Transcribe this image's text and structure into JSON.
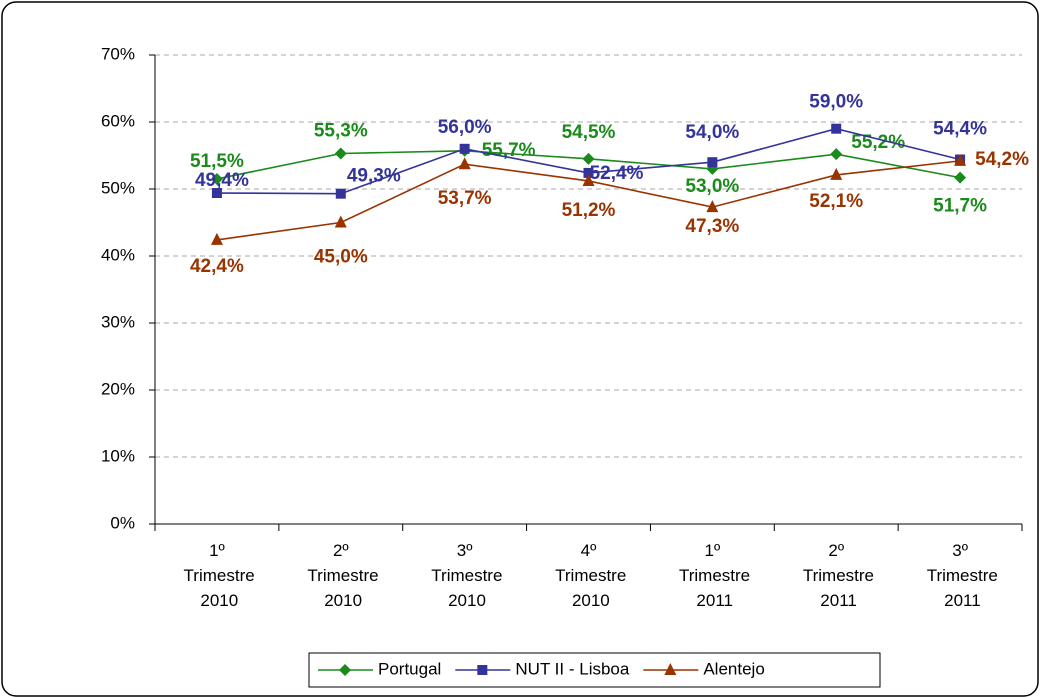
{
  "chart_data": {
    "type": "line",
    "categories": [
      "1º Trimestre 2010",
      "2º Trimestre 2010",
      "3º Trimestre 2010",
      "4º Trimestre 2010",
      "1º Trimestre 2011",
      "2º Trimestre 2011",
      "3º Trimestre 2011"
    ],
    "series": [
      {
        "name": "Portugal",
        "color": "#1a8a1a",
        "marker": "diamond",
        "values": [
          51.5,
          55.3,
          55.7,
          54.5,
          53.0,
          55.2,
          51.7
        ],
        "value_labels": [
          "51,5%",
          "55,3%",
          "55,7%",
          "54,5%",
          "53,0%",
          "55,2%",
          "51,7%"
        ]
      },
      {
        "name": "NUT II - Lisboa",
        "color": "#333399",
        "marker": "square",
        "values": [
          49.4,
          49.3,
          56.0,
          52.4,
          54.0,
          59.0,
          54.4
        ],
        "value_labels": [
          "49,4%",
          "49,3%",
          "56,0%",
          "52,4%",
          "54,0%",
          "59,0%",
          "54,4%"
        ]
      },
      {
        "name": "Alentejo",
        "color": "#993300",
        "marker": "triangle",
        "values": [
          42.4,
          45.0,
          53.7,
          51.2,
          47.3,
          52.1,
          54.2
        ],
        "value_labels": [
          "42,4%",
          "45,0%",
          "53,7%",
          "51,2%",
          "47,3%",
          "52,1%",
          "54,2%"
        ]
      }
    ],
    "ylim": [
      0,
      70
    ],
    "yticks": [
      {
        "value": 0,
        "label": "0%"
      },
      {
        "value": 10,
        "label": "10%"
      },
      {
        "value": 20,
        "label": "20%"
      },
      {
        "value": 30,
        "label": "30%"
      },
      {
        "value": 40,
        "label": "40%"
      },
      {
        "value": 50,
        "label": "50%"
      },
      {
        "value": 60,
        "label": "60%"
      },
      {
        "value": 70,
        "label": "70%"
      }
    ],
    "grid": true,
    "legend": "bottom"
  }
}
